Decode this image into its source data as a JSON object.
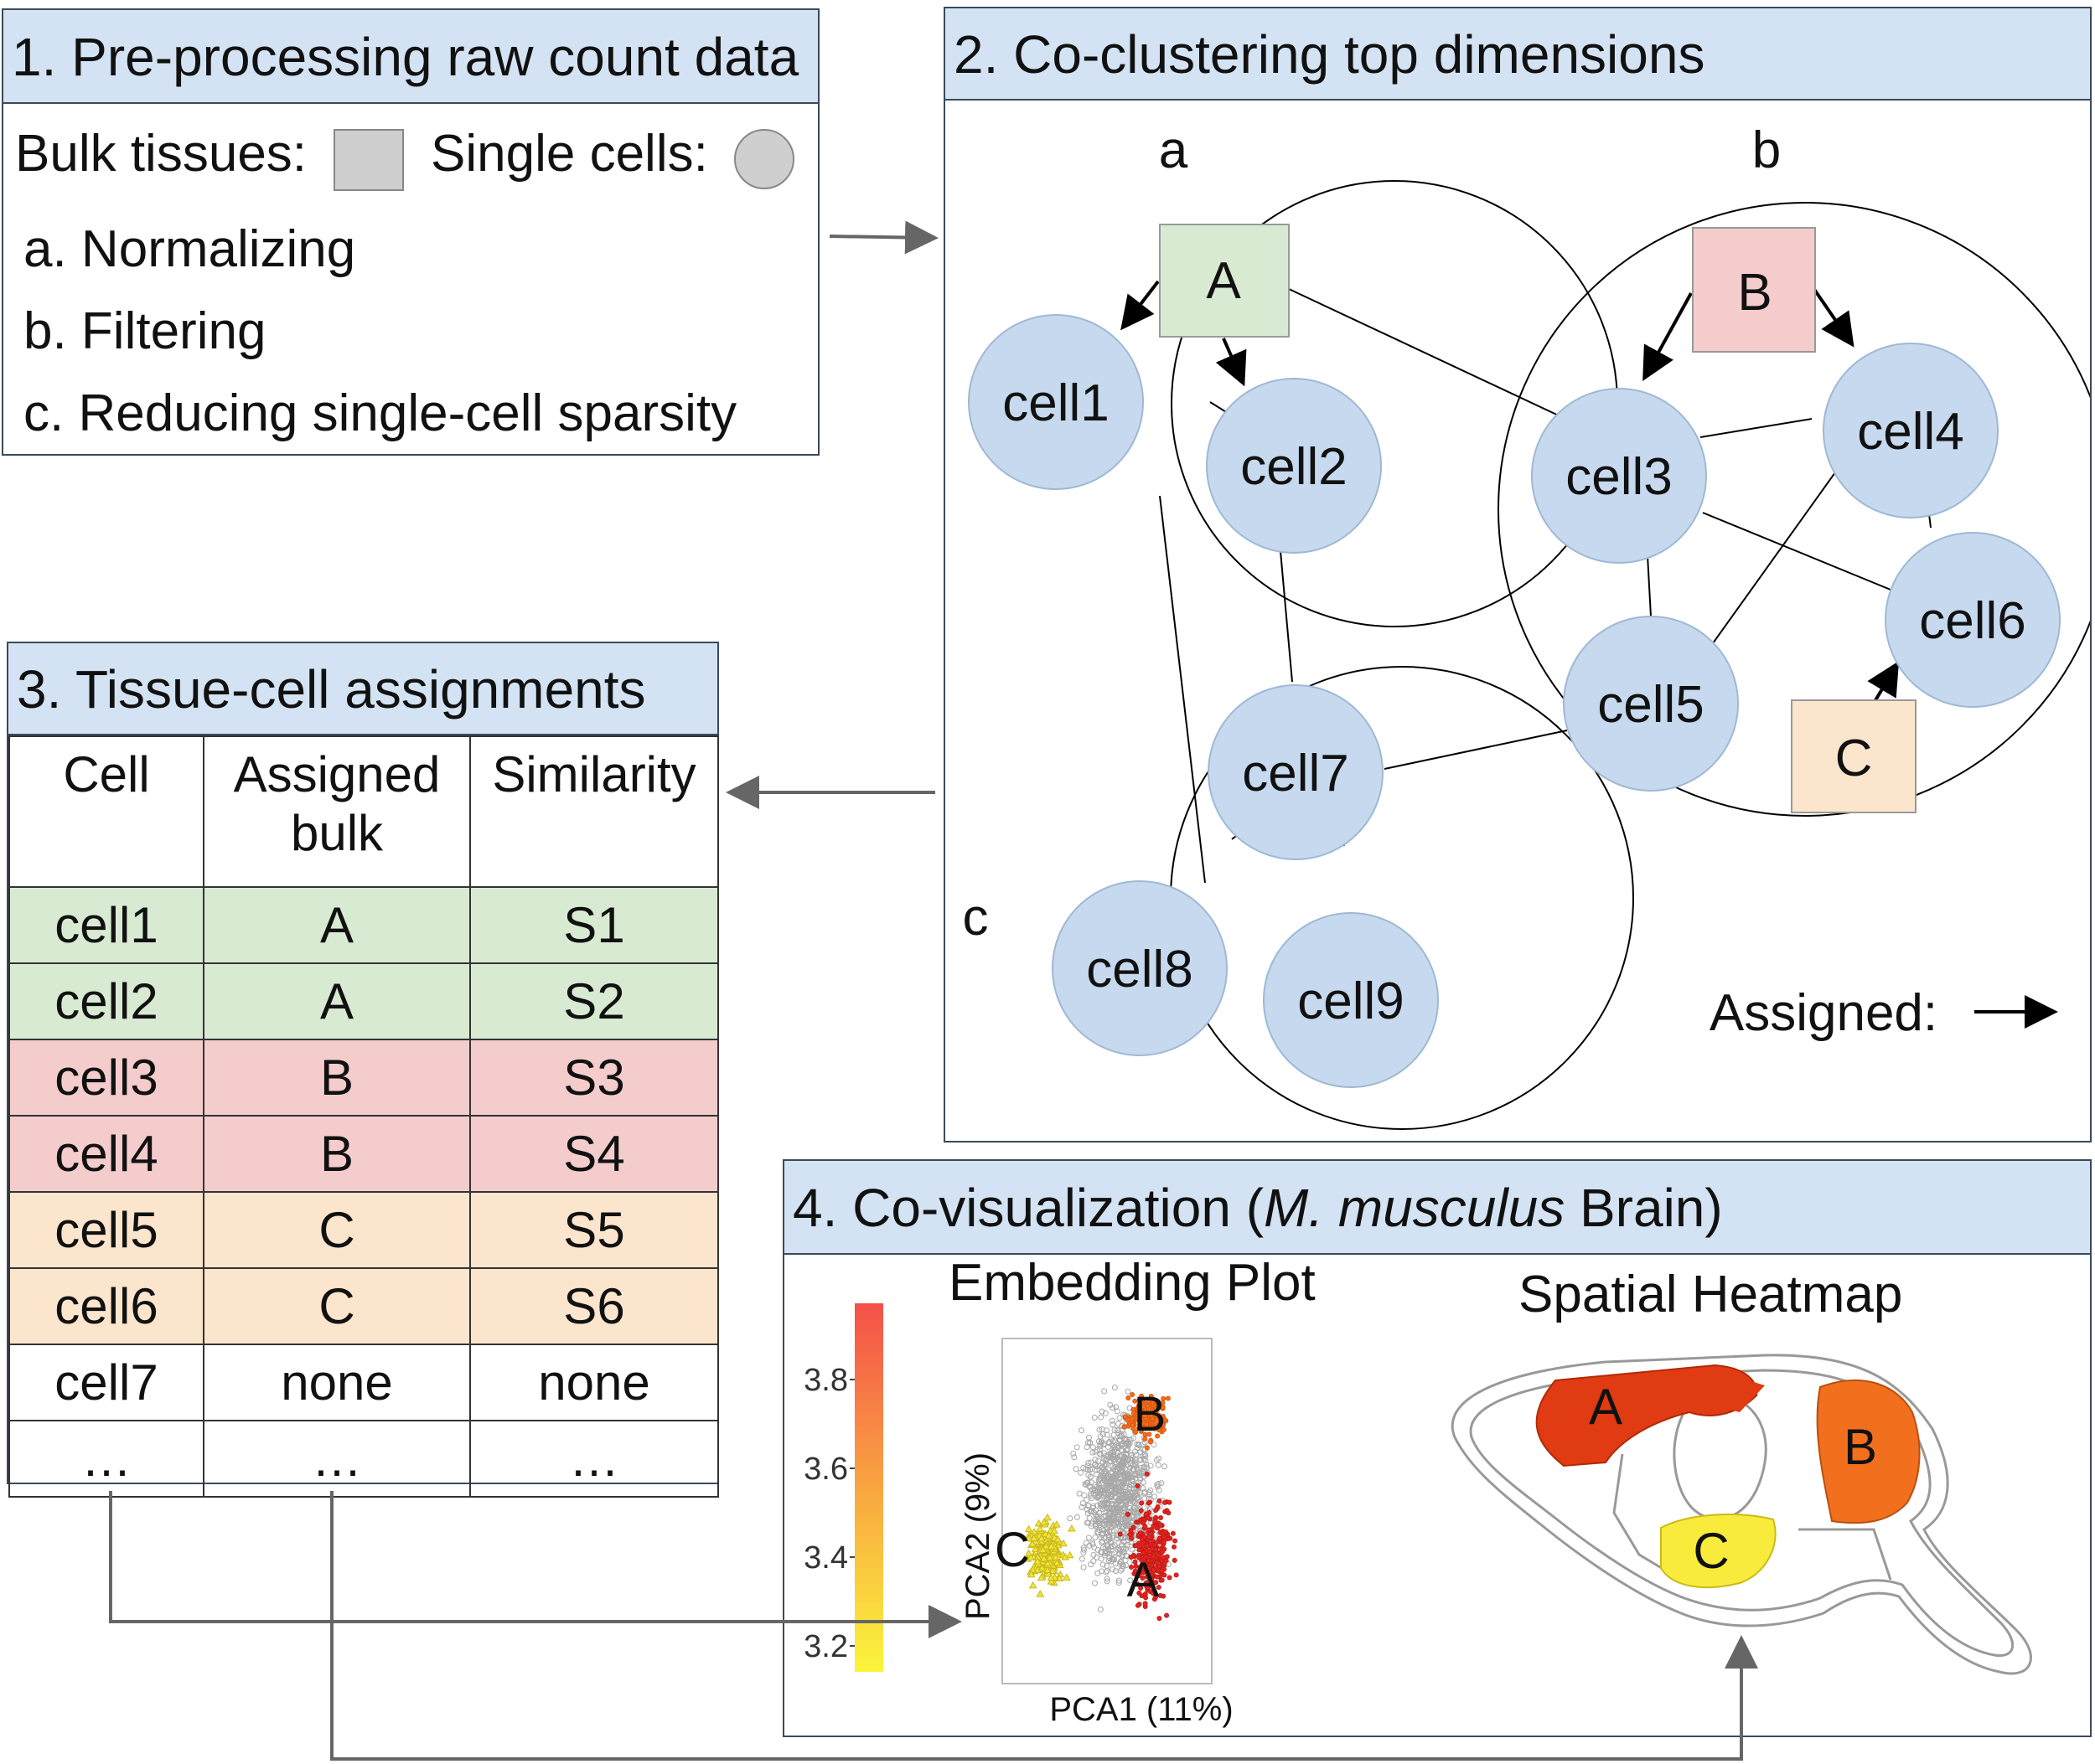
{
  "panel1": {
    "title": "1. Pre-processing raw count data",
    "bulk_label": "Bulk tissues:",
    "single_label": "Single cells:",
    "steps": [
      "a. Normalizing",
      "b. Filtering",
      "c. Reducing single-cell sparsity"
    ]
  },
  "panel2": {
    "title": "2. Co-clustering top dimensions",
    "cluster_labels": [
      "a",
      "b",
      "c"
    ],
    "bulks": [
      "A",
      "B",
      "C"
    ],
    "cells": [
      "cell1",
      "cell2",
      "cell3",
      "cell4",
      "cell5",
      "cell6",
      "cell7",
      "cell8",
      "cell9"
    ],
    "assigned_label": "Assigned:"
  },
  "panel3": {
    "title": "3. Tissue-cell assignments",
    "headers": [
      "Cell",
      "Assigned bulk",
      "Similarity"
    ],
    "rows": [
      {
        "cell": "cell1",
        "bulk": "A",
        "sim": "S1"
      },
      {
        "cell": "cell2",
        "bulk": "A",
        "sim": "S2"
      },
      {
        "cell": "cell3",
        "bulk": "B",
        "sim": "S3"
      },
      {
        "cell": "cell4",
        "bulk": "B",
        "sim": "S4"
      },
      {
        "cell": "cell5",
        "bulk": "C",
        "sim": "S5"
      },
      {
        "cell": "cell6",
        "bulk": "C",
        "sim": "S6"
      },
      {
        "cell": "cell7",
        "bulk": "none",
        "sim": "none"
      },
      {
        "cell": "…",
        "bulk": "…",
        "sim": "…"
      }
    ]
  },
  "panel4": {
    "title_prefix": "4. Co-visualization (",
    "title_species": "M. musculus",
    "title_suffix": " Brain)",
    "embedding_title": "Embedding Plot",
    "heatmap_title": "Spatial Heatmap",
    "colorbar_ticks": [
      "3.8",
      "3.6",
      "3.4",
      "3.2"
    ],
    "xlabel": "PCA1 (11%)",
    "ylabel": "PCA2 (9%)",
    "cluster_letters": [
      "A",
      "B",
      "C"
    ],
    "region_letters": [
      "A",
      "B",
      "C"
    ]
  },
  "colors": {
    "header_blue": "#d3e3f3",
    "cell_blue": "#c6d9ee",
    "bulk_green": "#d9ead3",
    "bulk_red": "#f4cccc",
    "bulk_orange": "#fce5cd",
    "region_a": "#e03b12",
    "region_b": "#f26f1e",
    "region_c": "#f8eb3c"
  }
}
